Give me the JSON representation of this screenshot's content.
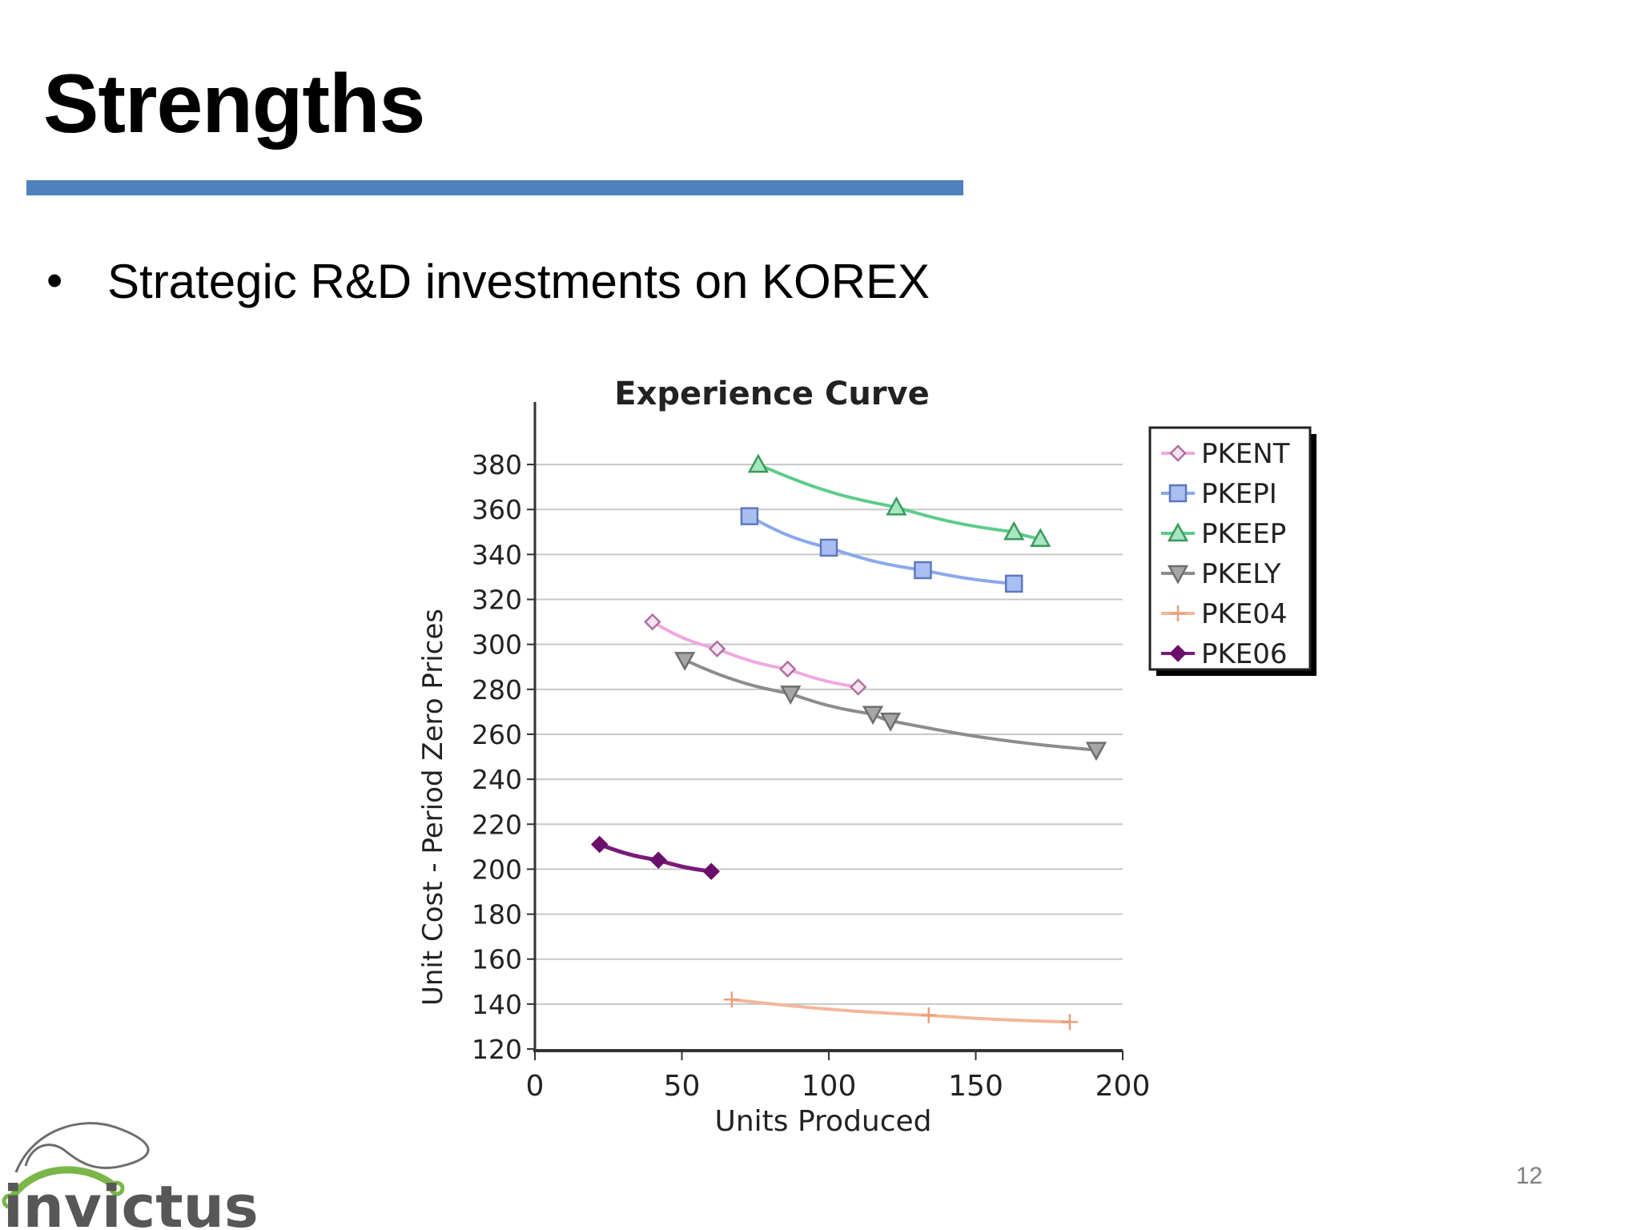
{
  "slide": {
    "title": "Strengths",
    "bullet": "•",
    "bullet_text": "Strategic R&D investments on KOREX",
    "page_number": "12",
    "accent_color": "#4f81bd"
  },
  "logo": {
    "text": "invictus",
    "icon": "invictus-logo-icon",
    "text_color": "#575757",
    "arc_color": "#7ab648"
  },
  "chart_data": {
    "type": "line",
    "title": "Experience Curve",
    "xlabel": "Units Produced",
    "ylabel": "Unit Cost - Period Zero Prices",
    "xlim": [
      0,
      200
    ],
    "ylim": [
      120,
      390
    ],
    "xticks": [
      0,
      50,
      100,
      150,
      200
    ],
    "yticks": [
      120,
      140,
      160,
      180,
      200,
      220,
      240,
      260,
      280,
      300,
      320,
      340,
      360,
      380
    ],
    "grid": "horizontal",
    "legend_position": "right",
    "series": [
      {
        "name": "PKENT",
        "marker": "diamond-open",
        "color": "#f0a8e0",
        "marker_color": "#b070a0",
        "x": [
          40,
          62,
          86,
          110
        ],
        "y": [
          310,
          298,
          289,
          281
        ]
      },
      {
        "name": "PKEPI",
        "marker": "square",
        "color": "#8aa8ec",
        "marker_color": "#5f77c0",
        "x": [
          73,
          100,
          132,
          163
        ],
        "y": [
          357,
          343,
          333,
          327
        ]
      },
      {
        "name": "PKEEP",
        "marker": "triangle-up",
        "color": "#5ccc8a",
        "marker_color": "#3a9a5c",
        "x": [
          76,
          123,
          163,
          172
        ],
        "y": [
          380,
          361,
          350,
          347
        ]
      },
      {
        "name": "PKELY",
        "marker": "triangle-down",
        "color": "#8c8c8c",
        "marker_color": "#6e6e6e",
        "x": [
          51,
          87,
          115,
          121,
          191
        ],
        "y": [
          293,
          278,
          269,
          266,
          253
        ]
      },
      {
        "name": "PKE04",
        "marker": "plus",
        "color": "#f2b89a",
        "marker_color": "#e8a07e",
        "x": [
          67,
          134,
          182
        ],
        "y": [
          142,
          135,
          132
        ]
      },
      {
        "name": "PKE06",
        "marker": "diamond-filled",
        "color": "#7a1a7a",
        "marker_color": "#6a0f6a",
        "x": [
          22,
          42,
          60
        ],
        "y": [
          211,
          204,
          199
        ]
      }
    ]
  }
}
